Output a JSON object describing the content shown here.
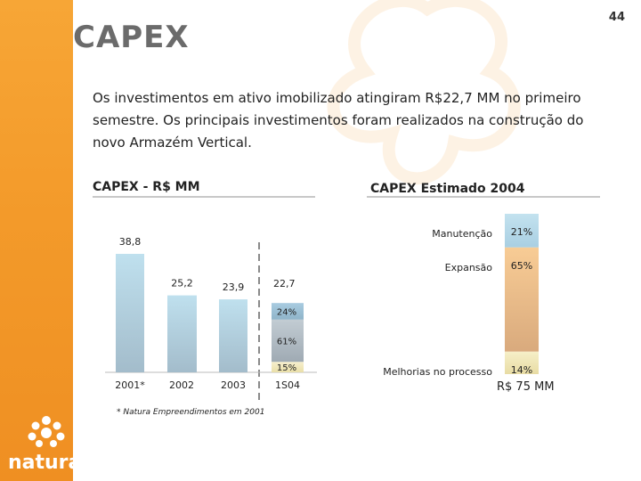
{
  "page": {
    "number": "44",
    "title": "CAPEX"
  },
  "intro": "Os investimentos em ativo imobilizado atingiram R$22,7 MM no primeiro semestre. Os principais investimentos foram realizados na construção do novo Armazém Vertical.",
  "brand": {
    "name": "natura"
  },
  "footnote": "* Natura Empreendimentos em 2001",
  "colors": {
    "sidebar": "#f39a2a",
    "bar_blue": "#b9dbea",
    "seg_blue": "#9dc1d8",
    "seg_orange": "#f5c18a",
    "seg_cream": "#f3e6b8"
  },
  "chart_data": [
    {
      "type": "bar",
      "title": "CAPEX - R$ MM",
      "categories": [
        "2001*",
        "2002",
        "2003",
        "1S04"
      ],
      "values": [
        38.8,
        25.2,
        23.9,
        22.7
      ],
      "value_labels": [
        "38,8",
        "25,2",
        "23,9",
        "22,7"
      ],
      "stack_1S04": [
        {
          "label": "24%",
          "value": 24
        },
        {
          "label": "61%",
          "value": 61
        },
        {
          "label": "15%",
          "value": 15
        }
      ],
      "ylim": [
        0,
        40
      ]
    },
    {
      "type": "bar",
      "title": "CAPEX Estimado 2004",
      "total_label": "R$ 75 MM",
      "segments": [
        {
          "name": "Manutenção",
          "value": 21,
          "label": "21%"
        },
        {
          "name": "Expansão",
          "value": 65,
          "label": "65%"
        },
        {
          "name": "Melhorias no processo",
          "value": 14,
          "label": "14%"
        }
      ]
    }
  ]
}
